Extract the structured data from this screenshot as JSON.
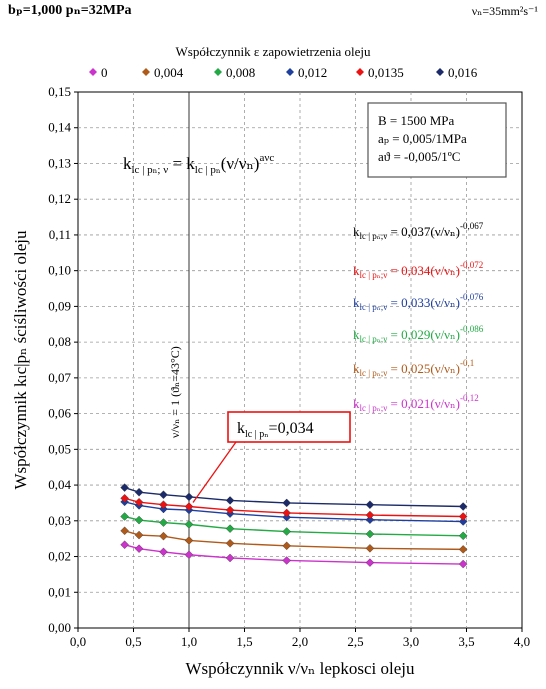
{
  "header": {
    "left": "bₚ=1,000   pₙ=32MPa",
    "right": "νₙ=35mm²s⁻¹"
  },
  "chart_data": {
    "type": "line",
    "title": "",
    "legend_title": "Współczynnik ε zapowietrzenia oleju",
    "legend_position": "top",
    "xlabel": "Współczynnik ν/νₙ lepkosci oleju",
    "ylabel": "Współczynnik kₗc|pₙ ściśliwości oleju",
    "xlim": [
      0,
      4
    ],
    "ylim": [
      0,
      0.15
    ],
    "x_ticks": [
      "0,0",
      "0,5",
      "1,0",
      "1,5",
      "2,0",
      "2,5",
      "3,0",
      "3,5",
      "4,0"
    ],
    "y_ticks": [
      "0,00",
      "0,01",
      "0,02",
      "0,03",
      "0,04",
      "0,05",
      "0,06",
      "0,07",
      "0,08",
      "0,09",
      "0,10",
      "0,11",
      "0,12",
      "0,13",
      "0,14",
      "0,15"
    ],
    "grid": true,
    "x": [
      0.42,
      0.55,
      0.77,
      1.0,
      1.37,
      1.88,
      2.63,
      3.47
    ],
    "series": [
      {
        "name": "0",
        "color": "#cc33cc",
        "marker": "diamond",
        "values": [
          0.0233,
          0.0222,
          0.0213,
          0.0205,
          0.0196,
          0.0189,
          0.0183,
          0.0179
        ]
      },
      {
        "name": "0,004",
        "color": "#b05a1a",
        "marker": "diamond",
        "values": [
          0.0272,
          0.026,
          0.0257,
          0.0245,
          0.0237,
          0.023,
          0.0223,
          0.022
        ]
      },
      {
        "name": "0,008",
        "color": "#22aa44",
        "marker": "diamond",
        "values": [
          0.0312,
          0.0302,
          0.0295,
          0.029,
          0.0278,
          0.027,
          0.0263,
          0.0258
        ]
      },
      {
        "name": "0,012",
        "color": "#1f3fa0",
        "marker": "diamond",
        "values": [
          0.0353,
          0.0343,
          0.0333,
          0.033,
          0.032,
          0.031,
          0.0303,
          0.0298
        ]
      },
      {
        "name": "0,0135",
        "color": "#ee1111",
        "marker": "diamond",
        "values": [
          0.0363,
          0.0352,
          0.0345,
          0.034,
          0.033,
          0.0322,
          0.0316,
          0.0312
        ]
      },
      {
        "name": "0,016",
        "color": "#1a2a6a",
        "marker": "diamond",
        "values": [
          0.0393,
          0.038,
          0.0373,
          0.0367,
          0.0357,
          0.035,
          0.0345,
          0.034
        ]
      }
    ],
    "main_formula": {
      "lhs": "k",
      "lhs_sub": "lc | pₙ; ν",
      "eq": " = k",
      "rhs_sub": "lc | pₙ",
      "rhs": "(ν/νₙ)",
      "exp": "aνc"
    },
    "params_box": [
      "B = 1500 MPa",
      "aₚ = 0,005/1MPa",
      "aϑ = -0,005/1ºC"
    ],
    "fit_labels": [
      {
        "coef": "0,037(ν/νₙ)",
        "exp": "-0,067",
        "color": "#000000"
      },
      {
        "coef": "0,034(ν/νₙ)",
        "exp": "-0,072",
        "color": "#ee1111"
      },
      {
        "coef": "0,033(ν/νₙ)",
        "exp": "-0,076",
        "color": "#1f3fa0"
      },
      {
        "coef": "0,029(ν/νₙ)",
        "exp": "-0,086",
        "color": "#22aa44"
      },
      {
        "coef": "0,025(ν/νₙ)",
        "exp": "-0,1",
        "color": "#b05a1a"
      },
      {
        "coef": "0,021(ν/νₙ)",
        "exp": "-0,12",
        "color": "#cc33cc"
      }
    ],
    "fit_label_prefix": "k",
    "fit_label_sub": "lc | pₙ;ν",
    "fit_label_eq": " = ",
    "vertical_annotation": "ν/νₙ = 1  (ϑₙ=43°C)",
    "callout": {
      "lhs": "k",
      "sub": "lc | pₙ",
      "value": "=0,034",
      "color": "#ee1111"
    }
  }
}
